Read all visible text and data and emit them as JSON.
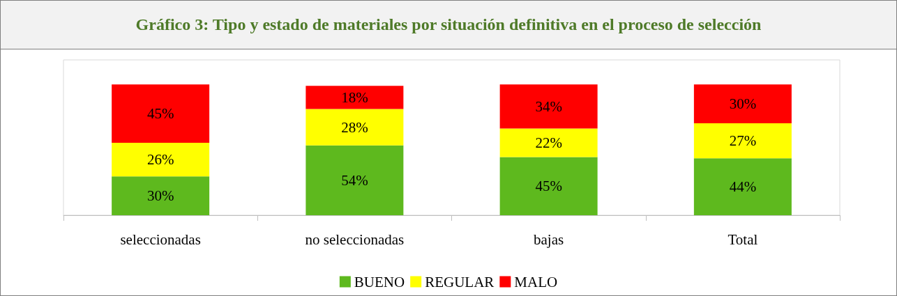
{
  "chart_data": {
    "type": "bar",
    "title": "Gráfico 3: Tipo y estado de materiales por situación definitiva en el proceso de selección",
    "stacked": true,
    "legend": "bottom",
    "categories": [
      "seleccionadas",
      "no seleccionadas",
      "bajas",
      "Total"
    ],
    "series": [
      {
        "name": "BUENO",
        "color": "#5eb91e",
        "values": [
          30,
          54,
          45,
          44
        ],
        "value_labels": [
          "30%",
          "54%",
          "45%",
          "44%"
        ]
      },
      {
        "name": "REGULAR",
        "color": "#ffff00",
        "values": [
          26,
          28,
          22,
          27
        ],
        "value_labels": [
          "26%",
          "28%",
          "22%",
          "27%"
        ]
      },
      {
        "name": "MALO",
        "color": "#ff0000",
        "values": [
          45,
          18,
          34,
          30
        ],
        "value_labels": [
          "45%",
          "18%",
          "34%",
          "30%"
        ]
      }
    ]
  }
}
